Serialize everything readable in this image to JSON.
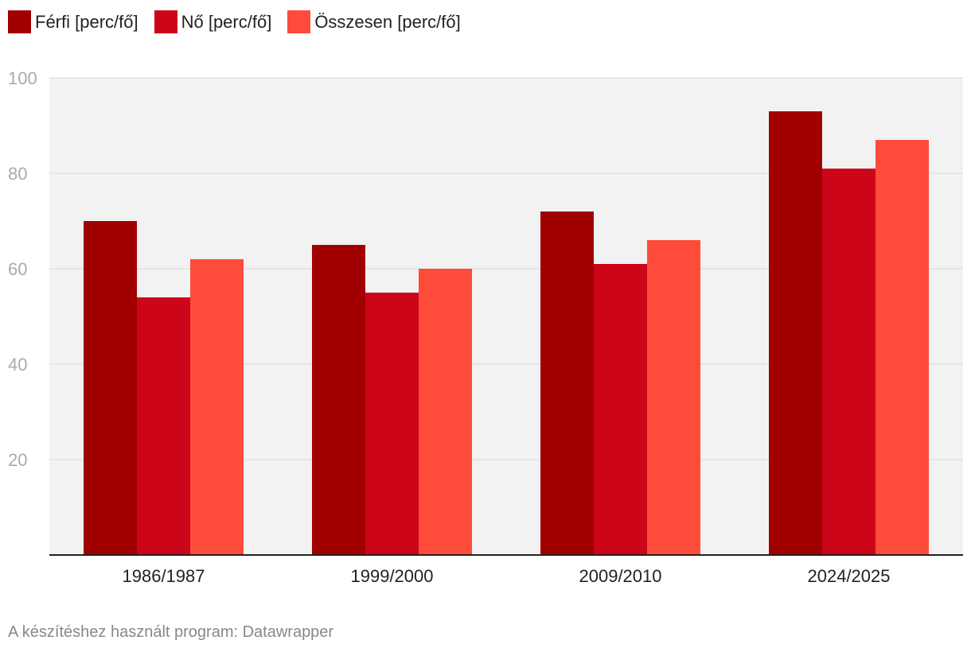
{
  "chart_data": {
    "type": "bar",
    "title": "",
    "xlabel": "",
    "ylabel": "",
    "categories": [
      "1986/1987",
      "1999/2000",
      "2009/2010",
      "2024/2025"
    ],
    "series": [
      {
        "name": "Férfi [perc/fő]",
        "color": "#a00000",
        "values": [
          70,
          65,
          72,
          93
        ]
      },
      {
        "name": "Nő [perc/fő]",
        "color": "#cc0519",
        "values": [
          54,
          55,
          61,
          81
        ]
      },
      {
        "name": "Összesen [perc/fő]",
        "color": "#ff4b3a",
        "values": [
          62,
          60,
          66,
          87
        ]
      }
    ],
    "ylim": [
      0,
      100
    ],
    "yticks": [
      20,
      40,
      60,
      80,
      100
    ],
    "grid": true,
    "legend": "top-left",
    "plot_background": "#f2f2f2"
  },
  "footer": {
    "credit": "A készítéshez használt program: Datawrapper"
  }
}
